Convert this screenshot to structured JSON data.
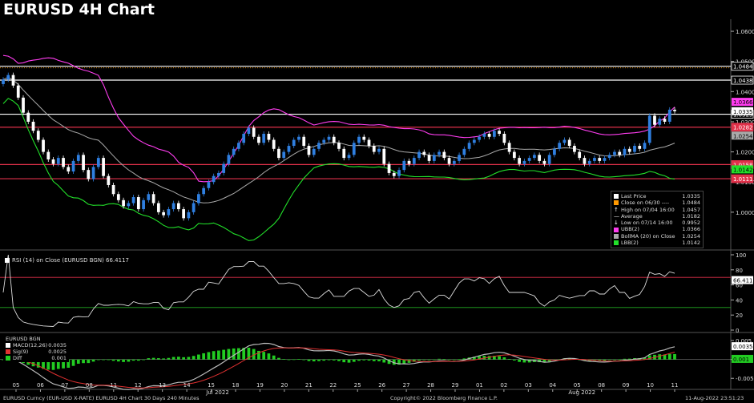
{
  "title": "EURUSD 4H Chart",
  "colors": {
    "up": "#2f7fe0",
    "down": "#ffffff",
    "ubb": "#ff3df0",
    "lbb": "#22e02a",
    "bollma": "#aaaaaa",
    "hline_white": "#ffffff",
    "hline_red": "#e0314a",
    "macd": "#bbbbbb",
    "signal": "#e03030",
    "diff": "#22cc22"
  },
  "chart_data": [
    {
      "type": "candlestick",
      "title": "EURUSD 4H Chart",
      "ylim": [
        0.988,
        1.064
      ],
      "y_ticks": [
        "1.0600",
        "1.0500",
        "1.0400",
        "1.0300",
        "1.0200",
        "1.0100",
        "1.0000"
      ],
      "x_ticks": [
        "05",
        "06",
        "07",
        "08",
        "11",
        "12",
        "13",
        "14",
        "15",
        "18",
        "19",
        "20",
        "21",
        "22",
        "25",
        "26",
        "27",
        "28",
        "29",
        "01",
        "02",
        "03",
        "04",
        "05",
        "08",
        "09",
        "10",
        "11"
      ],
      "x_month_labels": [
        "Jul 2022",
        "Aug 2022"
      ],
      "horizontal_levels": [
        {
          "value": 1.0484,
          "label": "1.0484",
          "style": "white-solid"
        },
        {
          "value": 1.0438,
          "label": "1.0438",
          "style": "white-solid"
        },
        {
          "value": 1.0325,
          "label": "1.0325",
          "style": "white-solid"
        },
        {
          "value": 1.0282,
          "label": "1.0282",
          "style": "red-solid"
        },
        {
          "value": 1.0158,
          "label": "1.0158",
          "style": "red-solid"
        },
        {
          "value": 1.0111,
          "label": "1.0111",
          "style": "red-solid"
        }
      ],
      "axis_tags": [
        {
          "value": 1.0366,
          "label": "1.0366",
          "color": "#ff3df0"
        },
        {
          "value": 1.0335,
          "label": "1.0335",
          "color": "#ffffff"
        },
        {
          "value": 1.0254,
          "label": "1.0254",
          "color": "#aaaaaa"
        },
        {
          "value": 1.0142,
          "label": "1.0142",
          "color": "#22e02a"
        }
      ],
      "close": [
        1.044,
        1.0455,
        1.042,
        1.038,
        1.033,
        1.03,
        1.027,
        1.024,
        1.02,
        1.0175,
        1.016,
        1.018,
        1.015,
        1.0135,
        1.017,
        1.019,
        1.014,
        1.011,
        1.015,
        1.018,
        1.012,
        1.009,
        1.006,
        1.004,
        1.002,
        1.003,
        1.005,
        1.001,
        1.004,
        1.006,
        1.003,
        1.0,
        0.999,
        1.001,
        1.003,
        1.001,
        0.998,
        1.0,
        1.003,
        1.006,
        1.008,
        1.01,
        1.012,
        1.013,
        1.016,
        1.019,
        1.021,
        1.023,
        1.026,
        1.028,
        1.025,
        1.023,
        1.026,
        1.024,
        1.021,
        1.018,
        1.02,
        1.022,
        1.024,
        1.025,
        1.022,
        1.019,
        1.021,
        1.023,
        1.024,
        1.025,
        1.023,
        1.021,
        1.018,
        1.019,
        1.023,
        1.025,
        1.024,
        1.022,
        1.02,
        1.021,
        1.016,
        1.013,
        1.012,
        1.014,
        1.017,
        1.016,
        1.018,
        1.02,
        1.019,
        1.017,
        1.019,
        1.02,
        1.018,
        1.016,
        1.017,
        1.019,
        1.021,
        1.023,
        1.024,
        1.025,
        1.026,
        1.025,
        1.027,
        1.026,
        1.023,
        1.02,
        1.018,
        1.016,
        1.017,
        1.018,
        1.019,
        1.017,
        1.016,
        1.019,
        1.021,
        1.023,
        1.024,
        1.022,
        1.02,
        1.018,
        1.016,
        1.017,
        1.018,
        1.017,
        1.018,
        1.019,
        1.02,
        1.019,
        1.021,
        1.02,
        1.022,
        1.021,
        1.023,
        1.032,
        1.029,
        1.031,
        1.03,
        1.034,
        1.0335
      ],
      "bollinger": {
        "ma": 1.0254,
        "ubb": 1.0366,
        "lbb": 1.0142
      },
      "legend": [
        {
          "label": "Last Price",
          "value": "1.0335",
          "color": "#ffffff"
        },
        {
          "label": "Close on 06/30 ----",
          "value": "1.0484",
          "color": "#ff9900"
        },
        {
          "label": "High on 07/04 16:00",
          "value": "1.0457",
          "color": "#ffffff",
          "marker": "↑"
        },
        {
          "label": "Average",
          "value": "1.0182",
          "color": "#ffffff",
          "marker": "—"
        },
        {
          "label": "Low on 07/14 16:00",
          "value": "0.9952",
          "color": "#ffffff",
          "marker": "↓"
        },
        {
          "label": "UBB(2)",
          "value": "1.0366",
          "color": "#ff3df0"
        },
        {
          "label": "BollMA (20)  on Close",
          "value": "1.0254",
          "color": "#aaaaaa"
        },
        {
          "label": "LBB(2)",
          "value": "1.0142",
          "color": "#22e02a"
        }
      ]
    },
    {
      "type": "line",
      "title": "RSI (14)  on Close (EURUSD BGN) 66.4117",
      "ylim": [
        0,
        100
      ],
      "y_ticks": [
        "100",
        "80",
        "60",
        "40",
        "20",
        "0"
      ],
      "levels": [
        70,
        30
      ],
      "last_value": "66.4117"
    },
    {
      "type": "bar",
      "title": "EURUSD BGN",
      "y_ticks": [
        "0.005",
        "0.000",
        "-0.005"
      ],
      "ylim": [
        -0.0075,
        0.0065
      ],
      "legend": [
        {
          "label": "MACD(12,26)",
          "value": "0.0035",
          "color": "#ffffff"
        },
        {
          "label": "Sig(9)",
          "value": "0.0025",
          "color": "#e03030"
        },
        {
          "label": "Diff",
          "value": "0.001",
          "color": "#22cc22"
        }
      ],
      "axis_tags": [
        "0.0035",
        "0.001"
      ]
    }
  ],
  "footer": {
    "left": "EURUSD Curncy (EUR-USD X-RATE) EURUSD 4H Chart 30 Days 240 Minutes",
    "center": "Copyright© 2022 Bloomberg Finance L.P.",
    "right": "11-Aug-2022 23:51:23"
  }
}
